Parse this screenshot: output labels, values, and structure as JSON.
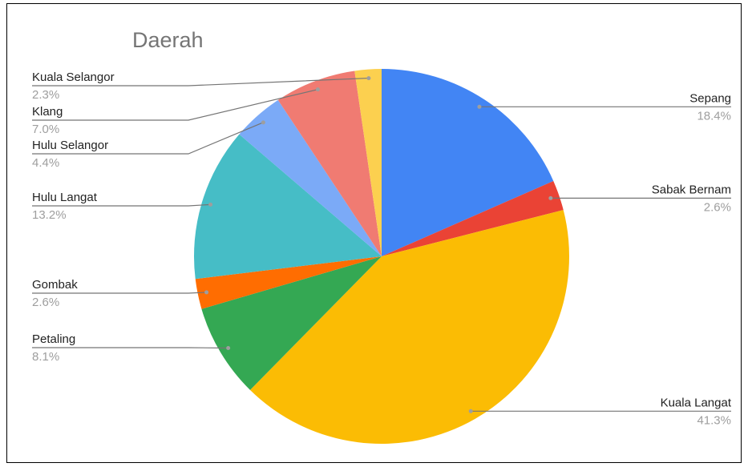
{
  "chart_data": {
    "type": "pie",
    "title": "Daerah",
    "categories": [
      "Sepang",
      "Sabak Bernam",
      "Kuala Langat",
      "Petaling",
      "Gombak",
      "Hulu Langat",
      "Hulu Selangor",
      "Klang",
      "Kuala Selangor"
    ],
    "values": [
      18.4,
      2.6,
      41.3,
      8.1,
      2.6,
      13.2,
      4.4,
      7.0,
      2.3
    ],
    "value_labels": [
      "18.4%",
      "2.6%",
      "41.3%",
      "8.1%",
      "2.6%",
      "13.2%",
      "4.4%",
      "7.0%",
      "2.3%"
    ],
    "colors": [
      "#4285f4",
      "#ea4335",
      "#fbbc04",
      "#34a853",
      "#ff6d01",
      "#46bdc6",
      "#7baaf7",
      "#f07b72",
      "#fcd04f"
    ]
  }
}
